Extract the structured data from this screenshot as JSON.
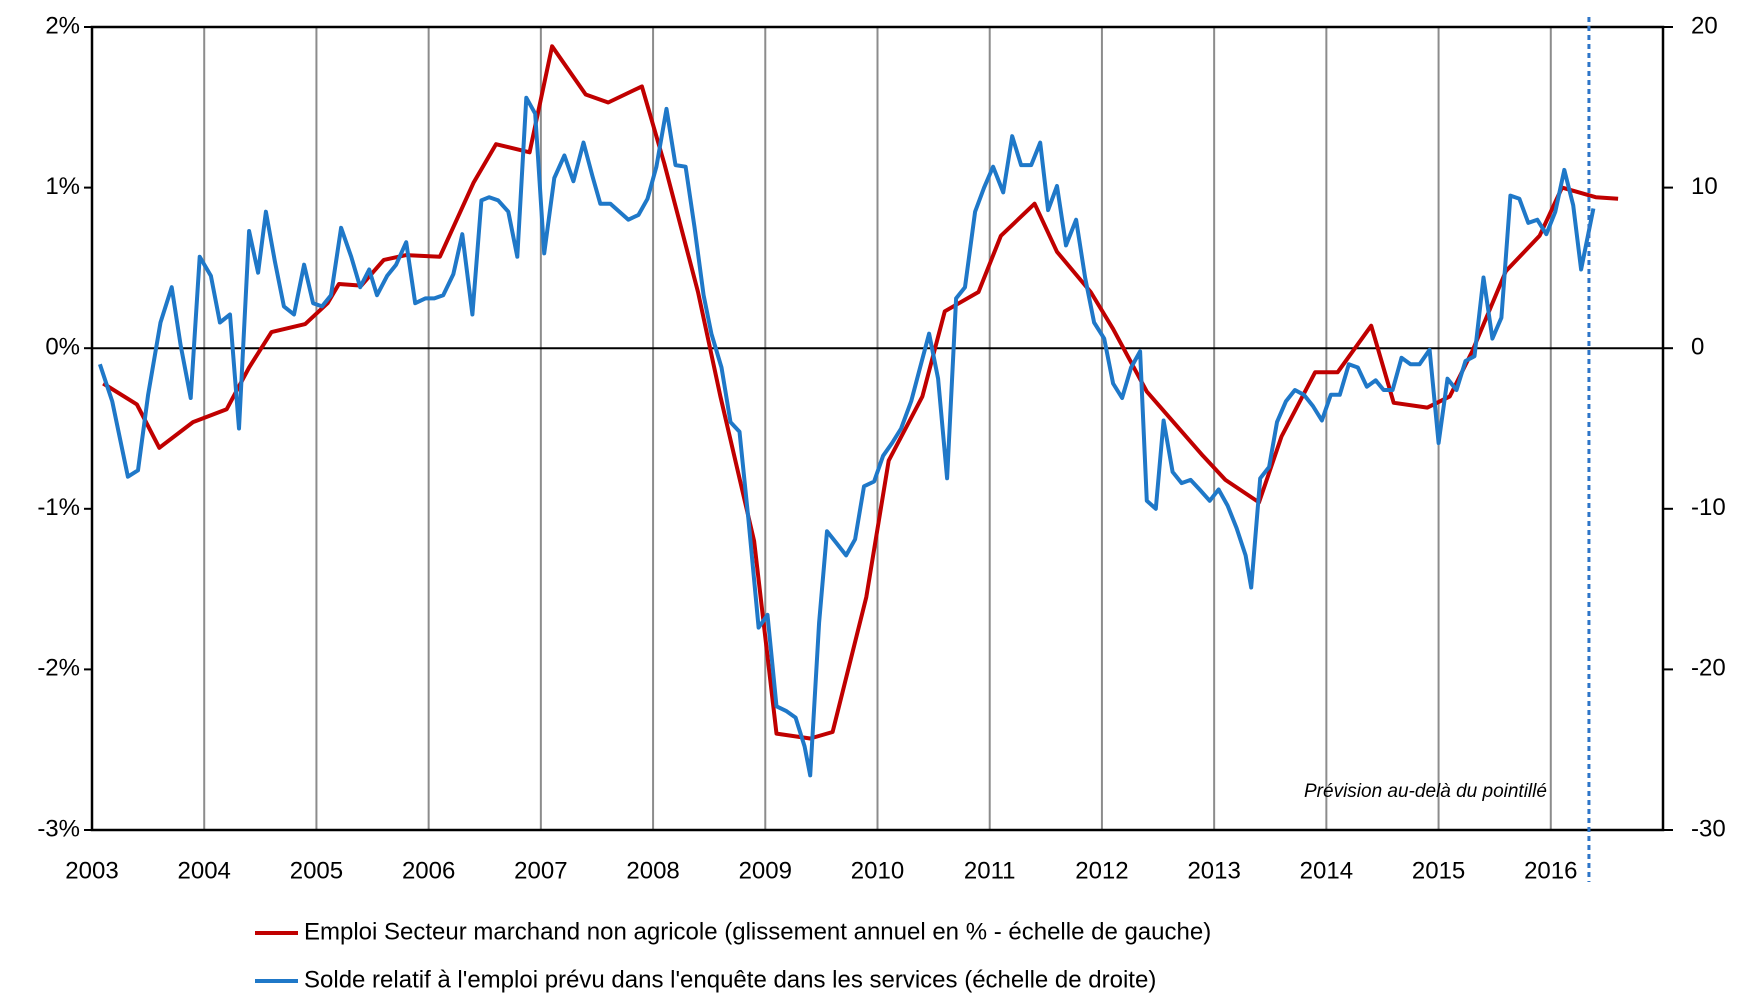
{
  "chart_data": {
    "type": "line",
    "xlim": [
      2003,
      2017
    ],
    "xticks": [
      2003,
      2004,
      2005,
      2006,
      2007,
      2008,
      2009,
      2010,
      2011,
      2012,
      2013,
      2014,
      2015,
      2016
    ],
    "ylim": [
      -3,
      2
    ],
    "yticks": [
      {
        "value": -3,
        "label": "-3%"
      },
      {
        "value": -2,
        "label": "-2%"
      },
      {
        "value": -1,
        "label": "-1%"
      },
      {
        "value": 0,
        "label": "0%"
      },
      {
        "value": 1,
        "label": "1%"
      },
      {
        "value": 2,
        "label": "2%"
      }
    ],
    "y2lim": [
      -30,
      20
    ],
    "y2ticks": [
      -30,
      -20,
      -10,
      0,
      10,
      20
    ],
    "grid": true,
    "forecast_x": 2016.34,
    "annotation": "Prévision au-delà du pointillé",
    "series": [
      {
        "name": "Emploi Secteur marchand non agricole (glissement annuel en % - échelle de gauche)",
        "color": "#c00000",
        "axis": "y",
        "x": [
          2003.1,
          2003.4,
          2003.6,
          2003.9,
          2004.2,
          2004.4,
          2004.6,
          2004.9,
          2005.1,
          2005.2,
          2005.4,
          2005.6,
          2005.8,
          2006.1,
          2006.4,
          2006.6,
          2006.9,
          2007.1,
          2007.4,
          2007.6,
          2007.9,
          2008.1,
          2008.4,
          2008.6,
          2008.9,
          2009.1,
          2009.4,
          2009.6,
          2009.9,
          2010.1,
          2010.4,
          2010.6,
          2010.9,
          2011.1,
          2011.4,
          2011.6,
          2011.9,
          2012.1,
          2012.4,
          2012.6,
          2012.9,
          2013.1,
          2013.4,
          2013.6,
          2013.9,
          2014.1,
          2014.4,
          2014.6,
          2014.9,
          2015.1,
          2015.3,
          2015.6,
          2015.9,
          2016.1,
          2016.4,
          2016.6
        ],
        "values": [
          -0.22,
          -0.35,
          -0.62,
          -0.46,
          -0.38,
          -0.12,
          0.1,
          0.15,
          0.28,
          0.4,
          0.39,
          0.55,
          0.58,
          0.57,
          1.03,
          1.27,
          1.22,
          1.88,
          1.58,
          1.53,
          1.63,
          1.15,
          0.35,
          -0.3,
          -1.2,
          -2.4,
          -2.43,
          -2.39,
          -1.55,
          -0.7,
          -0.3,
          0.23,
          0.35,
          0.7,
          0.9,
          0.6,
          0.35,
          0.12,
          -0.27,
          -0.43,
          -0.67,
          -0.82,
          -0.96,
          -0.55,
          -0.15,
          -0.15,
          0.14,
          -0.34,
          -0.37,
          -0.3,
          -0.02,
          0.48,
          0.7,
          1.0,
          0.94,
          0.93
        ]
      },
      {
        "name": "Solde relatif à l'emploi prévu dans l'enquête dans les services (échelle de droite)",
        "color": "#1f78c8",
        "axis": "y2",
        "x": [
          2003.07,
          2003.18,
          2003.32,
          2003.41,
          2003.5,
          2003.61,
          2003.71,
          2003.79,
          2003.88,
          2003.96,
          2004.06,
          2004.14,
          2004.23,
          2004.31,
          2004.4,
          2004.48,
          2004.55,
          2004.63,
          2004.71,
          2004.8,
          2004.89,
          2004.97,
          2005.05,
          2005.13,
          2005.22,
          2005.31,
          2005.39,
          2005.47,
          2005.54,
          2005.63,
          2005.71,
          2005.8,
          2005.88,
          2005.97,
          2006.05,
          2006.13,
          2006.22,
          2006.3,
          2006.39,
          2006.47,
          2006.54,
          2006.62,
          2006.71,
          2006.79,
          2006.87,
          2006.95,
          2007.03,
          2007.12,
          2007.21,
          2007.29,
          2007.38,
          2007.46,
          2007.53,
          2007.62,
          2007.7,
          2007.78,
          2007.87,
          2007.95,
          2008.03,
          2008.12,
          2008.2,
          2008.29,
          2008.37,
          2008.45,
          2008.52,
          2008.61,
          2008.69,
          2008.77,
          2008.85,
          2008.94,
          2009.02,
          2009.1,
          2009.19,
          2009.27,
          2009.35,
          2009.4,
          2009.48,
          2009.55,
          2009.63,
          2009.72,
          2009.8,
          2009.88,
          2009.97,
          2010.05,
          2010.13,
          2010.21,
          2010.3,
          2010.38,
          2010.46,
          2010.54,
          2010.62,
          2010.7,
          2010.78,
          2010.87,
          2010.95,
          2011.03,
          2011.12,
          2011.2,
          2011.28,
          2011.37,
          2011.45,
          2011.52,
          2011.6,
          2011.68,
          2011.77,
          2011.85,
          2011.93,
          2012.02,
          2012.1,
          2012.18,
          2012.26,
          2012.34,
          2012.4,
          2012.48,
          2012.55,
          2012.63,
          2012.71,
          2012.79,
          2012.87,
          2012.96,
          2013.04,
          2013.12,
          2013.2,
          2013.28,
          2013.33,
          2013.41,
          2013.49,
          2013.56,
          2013.64,
          2013.72,
          2013.8,
          2013.88,
          2013.96,
          2014.04,
          2014.12,
          2014.2,
          2014.28,
          2014.36,
          2014.44,
          2014.51,
          2014.59,
          2014.67,
          2014.75,
          2014.83,
          2014.92,
          2015.0,
          2015.08,
          2015.16,
          2015.24,
          2015.32,
          2015.4,
          2015.48,
          2015.56,
          2015.64,
          2015.72,
          2015.8,
          2015.88,
          2015.96,
          2016.04,
          2016.12,
          2016.2,
          2016.27,
          2016.38
        ],
        "values": [
          -1,
          -3.3,
          -8,
          -7.6,
          -2.9,
          1.6,
          3.8,
          0.2,
          -3.1,
          5.7,
          4.5,
          1.6,
          2.1,
          -5.0,
          7.3,
          4.7,
          8.5,
          5.4,
          2.6,
          2.1,
          5.2,
          2.8,
          2.6,
          3.3,
          7.5,
          5.7,
          3.8,
          4.9,
          3.3,
          4.5,
          5.2,
          6.6,
          2.8,
          3.1,
          3.1,
          3.3,
          4.6,
          7.1,
          2.1,
          9.2,
          9.4,
          9.2,
          8.5,
          5.7,
          15.6,
          14.6,
          5.9,
          10.6,
          12,
          10.4,
          12.8,
          10.7,
          9.0,
          9.0,
          8.5,
          8.0,
          8.3,
          9.3,
          11.3,
          14.9,
          11.4,
          11.3,
          7.5,
          3.3,
          0.9,
          -1.2,
          -4.6,
          -5.2,
          -10.7,
          -17.4,
          -16.6,
          -22.3,
          -22.6,
          -23,
          -24.8,
          -26.6,
          -17.1,
          -11.4,
          -12.1,
          -12.9,
          -11.9,
          -8.6,
          -8.3,
          -6.7,
          -5.9,
          -5.0,
          -3.3,
          -1.2,
          0.9,
          -1.9,
          -8.1,
          3.1,
          3.8,
          8.5,
          10.0,
          11.3,
          9.7,
          13.2,
          11.4,
          11.4,
          12.8,
          8.6,
          10.1,
          6.4,
          8.0,
          4.4,
          1.6,
          0.6,
          -2.2,
          -3.1,
          -1.2,
          -0.2,
          -9.5,
          -10.0,
          -4.5,
          -7.7,
          -8.4,
          -8.2,
          -8.8,
          -9.5,
          -8.8,
          -9.8,
          -11.2,
          -12.9,
          -14.9,
          -8.1,
          -7.4,
          -4.6,
          -3.3,
          -2.6,
          -2.9,
          -3.6,
          -4.5,
          -2.9,
          -2.9,
          -1.0,
          -1.2,
          -2.4,
          -2.0,
          -2.6,
          -2.6,
          -0.6,
          -1.0,
          -1.0,
          -0.1,
          -5.9,
          -1.9,
          -2.6,
          -0.8,
          -0.5,
          4.4,
          0.6,
          1.9,
          9.5,
          9.3,
          7.8,
          8.0,
          7.1,
          8.5,
          11.1,
          8.9,
          4.9,
          8.7
        ]
      }
    ]
  }
}
